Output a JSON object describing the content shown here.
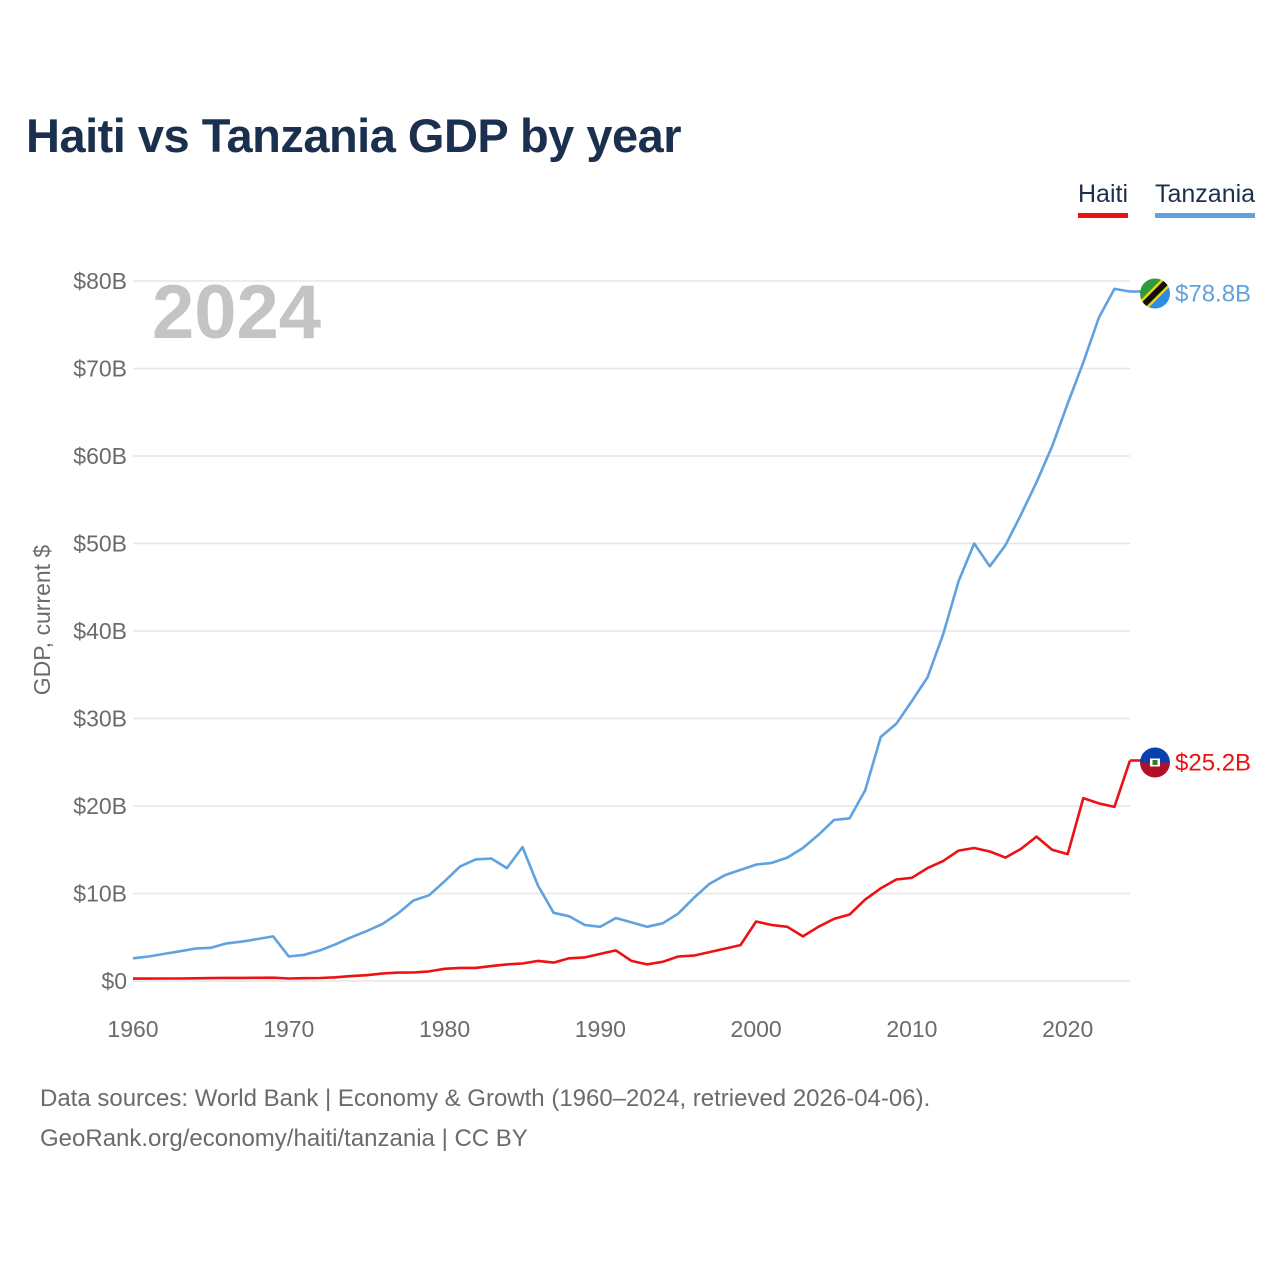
{
  "title": "Haiti vs Tanzania GDP by year",
  "legend": [
    "Haiti",
    "Tanzania"
  ],
  "sources": {
    "line1": "Data sources: World Bank | Economy & Growth (1960–2024, retrieved 2026-04-06).",
    "line2": "GeoRank.org/economy/haiti/tanzania | CC BY"
  },
  "chart_data": {
    "type": "line",
    "title": "Haiti vs Tanzania GDP by year",
    "ylabel": "GDP, current $",
    "xlabel": "",
    "year_label": "2024",
    "xlim": [
      1960,
      2024
    ],
    "ylim": [
      0,
      80
    ],
    "y_unit": "billions USD",
    "x_ticks": [
      1960,
      1970,
      1980,
      1990,
      2000,
      2010,
      2020
    ],
    "y_ticks": [
      0,
      10,
      20,
      30,
      40,
      50,
      60,
      70,
      80
    ],
    "y_tick_labels": [
      "$0",
      "$10B",
      "$20B",
      "$30B",
      "$40B",
      "$50B",
      "$60B",
      "$70B",
      "$80B"
    ],
    "grid": true,
    "legend_position": "top-right",
    "x": [
      1960,
      1961,
      1962,
      1963,
      1964,
      1965,
      1966,
      1967,
      1968,
      1969,
      1970,
      1971,
      1972,
      1973,
      1974,
      1975,
      1976,
      1977,
      1978,
      1979,
      1980,
      1981,
      1982,
      1983,
      1984,
      1985,
      1986,
      1987,
      1988,
      1989,
      1990,
      1991,
      1992,
      1993,
      1994,
      1995,
      1996,
      1997,
      1998,
      1999,
      2000,
      2001,
      2002,
      2003,
      2004,
      2005,
      2006,
      2007,
      2008,
      2009,
      2010,
      2011,
      2012,
      2013,
      2014,
      2015,
      2016,
      2017,
      2018,
      2019,
      2020,
      2021,
      2022,
      2023,
      2024
    ],
    "series": [
      {
        "name": "Haiti",
        "color": "#ee1111",
        "end_label": "$25.2B",
        "values": [
          0.27,
          0.27,
          0.28,
          0.29,
          0.31,
          0.33,
          0.35,
          0.36,
          0.37,
          0.38,
          0.28,
          0.32,
          0.34,
          0.42,
          0.56,
          0.66,
          0.86,
          0.96,
          0.97,
          1.1,
          1.4,
          1.5,
          1.5,
          1.7,
          1.9,
          2.0,
          2.3,
          2.1,
          2.6,
          2.7,
          3.1,
          3.5,
          2.3,
          1.9,
          2.2,
          2.8,
          2.9,
          3.3,
          3.7,
          4.1,
          6.8,
          6.4,
          6.2,
          5.1,
          6.2,
          7.1,
          7.6,
          9.3,
          10.6,
          11.6,
          11.8,
          12.9,
          13.7,
          14.9,
          15.2,
          14.8,
          14.1,
          15.1,
          16.5,
          15.0,
          14.5,
          20.9,
          20.3,
          19.9,
          25.2
        ]
      },
      {
        "name": "Tanzania",
        "color": "#5fa2e0",
        "end_label": "$78.8B",
        "values": [
          2.6,
          2.8,
          3.1,
          3.4,
          3.7,
          3.8,
          4.3,
          4.5,
          4.8,
          5.1,
          2.8,
          3.0,
          3.5,
          4.2,
          5.0,
          5.7,
          6.5,
          7.7,
          9.2,
          9.8,
          11.4,
          13.1,
          13.9,
          14.0,
          12.9,
          15.3,
          10.9,
          7.8,
          7.4,
          6.4,
          6.2,
          7.2,
          6.7,
          6.2,
          6.6,
          7.7,
          9.5,
          11.1,
          12.1,
          12.7,
          13.3,
          13.5,
          14.1,
          15.2,
          16.7,
          18.4,
          18.6,
          21.8,
          27.9,
          29.4,
          32.0,
          34.7,
          39.6,
          45.7,
          50.0,
          47.4,
          49.8,
          53.3,
          57.0,
          61.1,
          66.0,
          70.7,
          75.8,
          79.1,
          78.8
        ]
      }
    ]
  }
}
